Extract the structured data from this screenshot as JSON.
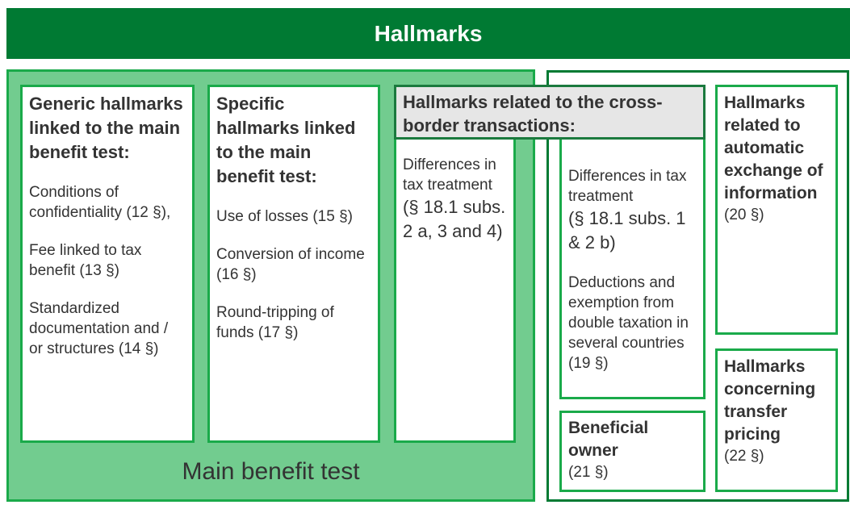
{
  "title": "Hallmarks",
  "main_benefit_label": "Main benefit test",
  "generic": {
    "heading": "Generic hallmarks linked to the main benefit test:",
    "items": [
      "Conditions of confidentiality (12 §),",
      "Fee linked to tax benefit (13 §)",
      "Standardized documentation and / or structures (14 §)"
    ]
  },
  "specific": {
    "heading": "Specific hallmarks linked to the main benefit test:",
    "items": [
      "Use of losses (15 §)",
      "Conversion of income (16 §)",
      "Round-tripping of funds (17 §)"
    ]
  },
  "cross_border": {
    "heading": "Hallmarks related to the cross-border transactions:",
    "mbt_item_a": "Differences in tax treatment",
    "mbt_item_b": "(§ 18.1 subs. 2 a, 3 and 4)",
    "item1_a": "Differences in tax treatment",
    "item1_b": "(§ 18.1 subs. 1 & 2 b)",
    "item2": "Deductions and exemption from double taxation in several countries (19 §)"
  },
  "beneficial": {
    "heading": "Beneficial owner",
    "ref": "(21 §)"
  },
  "automatic": {
    "heading": "Hallmarks related to automatic exchange of information",
    "ref": "(20 §)"
  },
  "transfer": {
    "heading": "Hallmarks concerning transfer pricing",
    "ref": "(22 §)"
  },
  "colors": {
    "header": "#007a33",
    "panel": "#72cc8f",
    "border": "#1aaa4a"
  }
}
